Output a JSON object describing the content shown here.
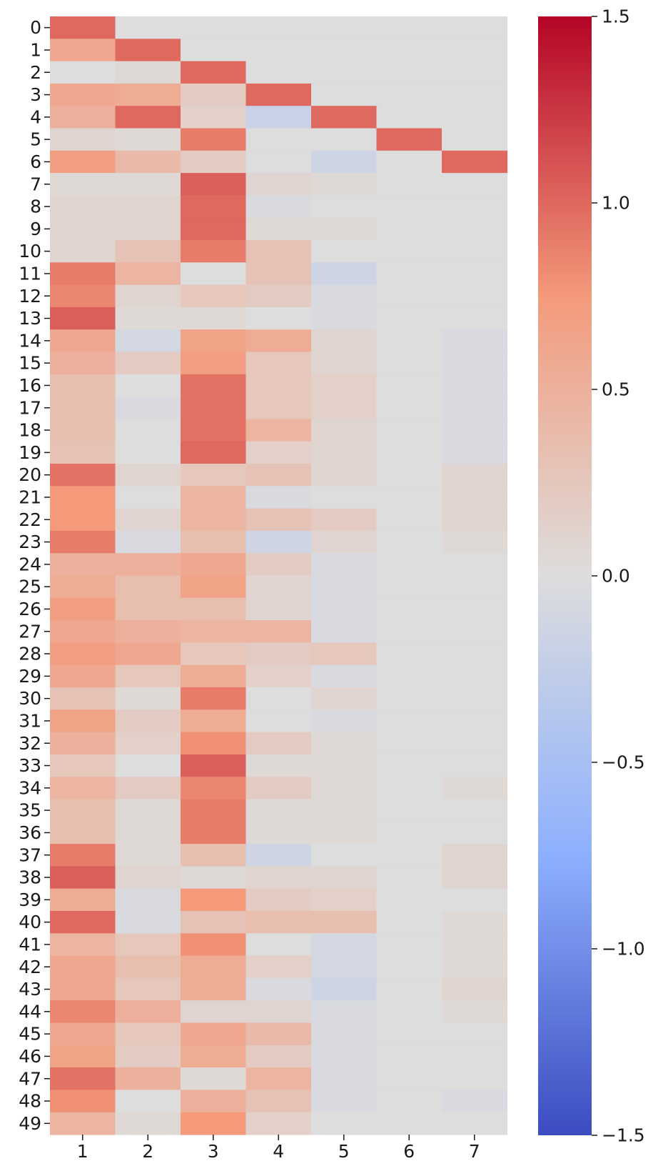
{
  "chart_data": {
    "type": "heatmap",
    "title": "",
    "xlabel": "",
    "ylabel": "",
    "x_categories": [
      "1",
      "2",
      "3",
      "4",
      "5",
      "6",
      "7"
    ],
    "y_categories": [
      "0",
      "1",
      "2",
      "3",
      "4",
      "5",
      "6",
      "7",
      "8",
      "9",
      "10",
      "11",
      "12",
      "13",
      "14",
      "15",
      "16",
      "17",
      "18",
      "19",
      "20",
      "21",
      "22",
      "23",
      "24",
      "25",
      "26",
      "27",
      "28",
      "29",
      "30",
      "31",
      "32",
      "33",
      "34",
      "35",
      "36",
      "37",
      "38",
      "39",
      "40",
      "41",
      "42",
      "43",
      "44",
      "45",
      "46",
      "47",
      "48",
      "49"
    ],
    "colormap": "coolwarm",
    "vmin": -1.5,
    "vmax": 1.5,
    "colorbar_ticks": [
      -1.5,
      -1.0,
      -0.5,
      0.0,
      0.5,
      1.0,
      1.5
    ],
    "colorbar_tick_labels": [
      "−1.5",
      "−1.0",
      "−0.5",
      "0.0",
      "0.5",
      "1.0",
      "1.5"
    ],
    "values": [
      [
        1.0,
        0,
        0,
        0,
        0,
        0,
        0
      ],
      [
        0.6,
        1.0,
        0,
        0,
        0,
        0,
        0
      ],
      [
        0.0,
        0.05,
        1.0,
        0,
        0,
        0,
        0
      ],
      [
        0.6,
        0.55,
        0.2,
        1.0,
        0,
        0,
        0
      ],
      [
        0.5,
        1.0,
        0.15,
        -0.2,
        1.0,
        0,
        0
      ],
      [
        0.1,
        0.05,
        0.9,
        0,
        0,
        1.0,
        0
      ],
      [
        0.7,
        0.4,
        0.2,
        0.0,
        -0.15,
        0.0,
        1.0
      ],
      [
        0.05,
        0.05,
        1.05,
        0.1,
        0.05,
        0.0,
        0.0
      ],
      [
        0.1,
        0.1,
        1.0,
        -0.05,
        0.0,
        0.0,
        0.0
      ],
      [
        0.1,
        0.1,
        1.0,
        0.05,
        0.05,
        0.0,
        0.0
      ],
      [
        0.1,
        0.3,
        0.9,
        0.3,
        0.0,
        0.0,
        0.0
      ],
      [
        0.9,
        0.45,
        0.0,
        0.3,
        -0.15,
        0.0,
        0.0
      ],
      [
        0.85,
        0.1,
        0.25,
        0.2,
        -0.05,
        0.0,
        0.0
      ],
      [
        1.05,
        0.05,
        0.05,
        0.0,
        -0.05,
        0.0,
        0.0
      ],
      [
        0.6,
        -0.1,
        0.65,
        0.55,
        0.1,
        0.0,
        -0.05
      ],
      [
        0.5,
        0.2,
        0.7,
        0.25,
        0.1,
        0.0,
        -0.05
      ],
      [
        0.35,
        0.0,
        0.95,
        0.25,
        0.15,
        0.0,
        -0.05
      ],
      [
        0.35,
        -0.05,
        0.95,
        0.25,
        0.15,
        0.0,
        -0.05
      ],
      [
        0.35,
        0.0,
        0.95,
        0.45,
        0.1,
        0.0,
        -0.05
      ],
      [
        0.3,
        0.0,
        1.0,
        0.15,
        0.1,
        0.0,
        -0.05
      ],
      [
        0.95,
        0.1,
        0.25,
        0.3,
        0.1,
        0.0,
        0.1
      ],
      [
        0.75,
        0.0,
        0.45,
        -0.05,
        0.0,
        0.0,
        0.1
      ],
      [
        0.75,
        0.1,
        0.45,
        0.3,
        0.2,
        0.0,
        0.1
      ],
      [
        0.9,
        -0.05,
        0.35,
        -0.15,
        0.1,
        0.0,
        0.05
      ],
      [
        0.5,
        0.5,
        0.6,
        0.2,
        -0.05,
        0.0,
        0.0
      ],
      [
        0.55,
        0.35,
        0.65,
        0.1,
        -0.05,
        0.0,
        0.0
      ],
      [
        0.7,
        0.35,
        0.35,
        0.1,
        -0.05,
        0.0,
        0.0
      ],
      [
        0.6,
        0.5,
        0.45,
        0.45,
        -0.05,
        0.0,
        0.0
      ],
      [
        0.7,
        0.6,
        0.25,
        0.2,
        0.25,
        0.0,
        0.0
      ],
      [
        0.6,
        0.25,
        0.55,
        0.15,
        -0.05,
        0.0,
        0.0
      ],
      [
        0.3,
        0.05,
        0.9,
        0.0,
        0.1,
        0.0,
        0.0
      ],
      [
        0.65,
        0.2,
        0.55,
        0.0,
        -0.05,
        0.0,
        0.0
      ],
      [
        0.5,
        0.15,
        0.8,
        0.2,
        0.05,
        0.0,
        0.0
      ],
      [
        0.25,
        0.0,
        1.05,
        0.05,
        0.05,
        0.0,
        0.0
      ],
      [
        0.45,
        0.2,
        0.85,
        0.2,
        0.05,
        0.0,
        0.05
      ],
      [
        0.35,
        0.05,
        0.9,
        0.05,
        0.05,
        0.0,
        0.0
      ],
      [
        0.35,
        0.05,
        0.9,
        0.05,
        0.05,
        0.0,
        0.0
      ],
      [
        0.9,
        0.05,
        0.35,
        -0.15,
        0.0,
        0.0,
        0.1
      ],
      [
        1.05,
        0.1,
        0.05,
        0.1,
        0.1,
        0.0,
        0.1
      ],
      [
        0.55,
        -0.05,
        0.75,
        0.2,
        0.15,
        0.0,
        0.0
      ],
      [
        1.0,
        -0.05,
        0.3,
        0.35,
        0.35,
        0.0,
        0.05
      ],
      [
        0.45,
        0.25,
        0.8,
        0.0,
        -0.1,
        0.0,
        0.05
      ],
      [
        0.6,
        0.35,
        0.55,
        0.15,
        -0.1,
        0.0,
        0.05
      ],
      [
        0.6,
        0.25,
        0.55,
        -0.05,
        -0.15,
        0.0,
        0.1
      ],
      [
        0.85,
        0.5,
        0.1,
        0.1,
        -0.05,
        0.0,
        0.05
      ],
      [
        0.6,
        0.25,
        0.6,
        0.4,
        -0.05,
        0.0,
        0.0
      ],
      [
        0.65,
        0.2,
        0.55,
        0.2,
        -0.05,
        0.0,
        0.0
      ],
      [
        0.95,
        0.5,
        0.05,
        0.45,
        -0.05,
        0.0,
        0.0
      ],
      [
        0.8,
        0.0,
        0.5,
        0.3,
        -0.05,
        0.0,
        -0.05
      ],
      [
        0.45,
        0.05,
        0.75,
        0.15,
        0.0,
        0.0,
        0.0
      ]
    ]
  }
}
